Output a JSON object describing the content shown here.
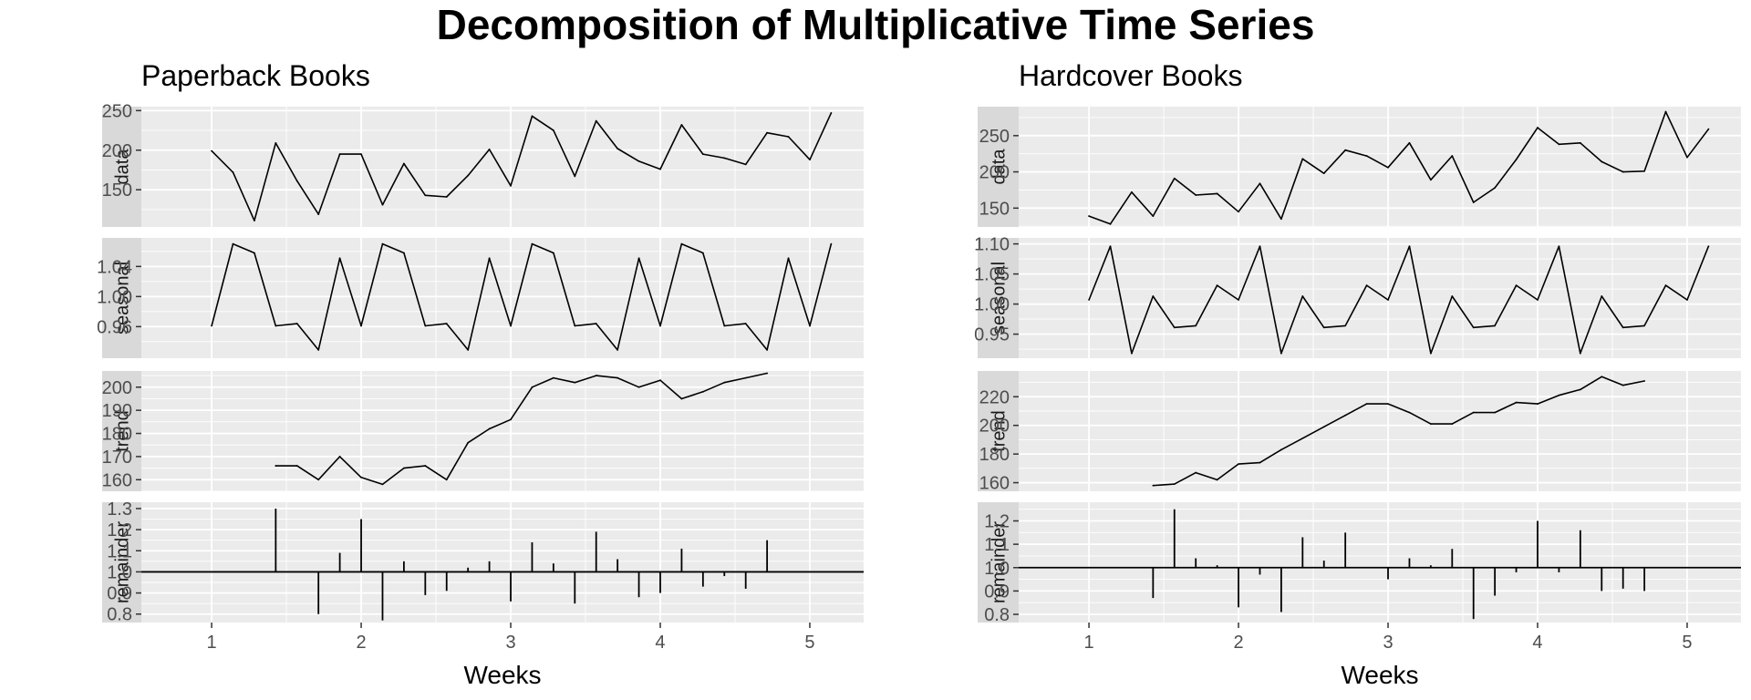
{
  "title": "Decomposition of Multiplicative Time Series",
  "colors": {
    "panel_background": "#ebebeb",
    "strip_background": "#d9d9d9",
    "grid": "#ffffff",
    "line": "#000000",
    "tick_text": "#4d4d4d"
  },
  "chart_data": [
    {
      "type": "line",
      "title": "Paperback Books",
      "xlabel": "Weeks",
      "xlim": [
        0.53,
        5.36
      ],
      "x_ticks": [
        1,
        2,
        3,
        4,
        5
      ],
      "x_tick_labels": [
        "1",
        "2",
        "3",
        "4",
        "5"
      ],
      "x": [
        1,
        1.1429,
        1.2857,
        1.4286,
        1.5714,
        1.7143,
        1.8571,
        2,
        2.1429,
        2.2857,
        2.4286,
        2.5714,
        2.7143,
        2.8571,
        3,
        3.1429,
        3.2857,
        3.4286,
        3.5714,
        3.7143,
        3.8571,
        4,
        4.1429,
        4.2857,
        4.4286,
        4.5714,
        4.7143,
        4.8571,
        5,
        5.1429
      ],
      "facets": [
        {
          "name": "data",
          "style": "line",
          "ylim": [
            103,
            255
          ],
          "y_ticks": [
            150,
            200,
            250
          ],
          "y_tick_labels": [
            "150",
            "200",
            "250"
          ],
          "values": [
            199,
            172,
            111,
            209,
            161,
            119,
            195,
            195,
            131,
            183,
            143,
            141,
            168,
            201,
            155,
            243,
            225,
            167,
            237,
            202,
            186,
            176,
            232,
            195,
            190,
            182,
            222,
            217,
            188,
            247
          ]
        },
        {
          "name": "seasonal",
          "style": "line",
          "ylim": [
            0.918,
            1.078
          ],
          "y_ticks": [
            0.96,
            1.0,
            1.04
          ],
          "y_tick_labels": [
            "0.96",
            "1.00",
            "1.04"
          ],
          "values": [
            0.961,
            1.07,
            1.058,
            0.961,
            0.964,
            0.929,
            1.051,
            0.961,
            1.07,
            1.058,
            0.961,
            0.964,
            0.929,
            1.051,
            0.961,
            1.07,
            1.058,
            0.961,
            0.964,
            0.929,
            1.051,
            0.961,
            1.07,
            1.058,
            0.961,
            0.964,
            0.929,
            1.051,
            0.961,
            1.07
          ]
        },
        {
          "name": "trend",
          "style": "line",
          "ylim": [
            155,
            207
          ],
          "y_ticks": [
            160,
            170,
            180,
            190,
            200
          ],
          "y_tick_labels": [
            "160",
            "170",
            "180",
            "190",
            "200"
          ],
          "values": [
            null,
            null,
            null,
            166,
            166,
            160,
            170,
            161,
            158,
            165,
            166,
            160,
            176,
            182,
            186,
            200,
            204,
            202,
            205,
            204,
            200,
            203,
            195,
            198,
            202,
            204,
            206,
            null,
            null,
            null
          ]
        },
        {
          "name": "remainder",
          "style": "bar",
          "baseline": 1.0,
          "ylim": [
            0.76,
            1.33
          ],
          "y_ticks": [
            0.8,
            0.9,
            1.0,
            1.1,
            1.2,
            1.3
          ],
          "y_tick_labels": [
            "0.8",
            "0.9",
            "1.0",
            "1.1",
            "1.2",
            "1.3"
          ],
          "values": [
            null,
            null,
            null,
            1.3,
            null,
            0.8,
            1.09,
            1.25,
            0.77,
            1.05,
            0.89,
            0.91,
            1.02,
            1.05,
            0.86,
            1.14,
            1.04,
            0.85,
            1.19,
            1.06,
            0.88,
            0.9,
            1.11,
            0.93,
            0.98,
            0.92,
            1.15,
            null,
            null,
            null
          ]
        }
      ]
    },
    {
      "type": "line",
      "title": "Hardcover Books",
      "xlabel": "Weeks",
      "xlim": [
        0.53,
        5.36
      ],
      "x_ticks": [
        1,
        2,
        3,
        4,
        5
      ],
      "x_tick_labels": [
        "1",
        "2",
        "3",
        "4",
        "5"
      ],
      "x": [
        1,
        1.1429,
        1.2857,
        1.4286,
        1.5714,
        1.7143,
        1.8571,
        2,
        2.1429,
        2.2857,
        2.4286,
        2.5714,
        2.7143,
        2.8571,
        3,
        3.1429,
        3.2857,
        3.4286,
        3.5714,
        3.7143,
        3.8571,
        4,
        4.1429,
        4.2857,
        4.4286,
        4.5714,
        4.7143,
        4.8571,
        5,
        5.1429
      ],
      "facets": [
        {
          "name": "data",
          "style": "line",
          "ylim": [
            124,
            290
          ],
          "y_ticks": [
            150,
            200,
            250
          ],
          "y_tick_labels": [
            "150",
            "200",
            "250"
          ],
          "values": [
            139,
            128,
            172,
            139,
            191,
            168,
            170,
            145,
            184,
            135,
            218,
            198,
            230,
            222,
            206,
            240,
            189,
            222,
            158,
            178,
            217,
            261,
            238,
            240,
            214,
            200,
            201,
            283,
            220,
            259
          ]
        },
        {
          "name": "seasonal",
          "style": "line",
          "ylim": [
            0.91,
            1.11
          ],
          "y_ticks": [
            0.95,
            1.0,
            1.05,
            1.1
          ],
          "y_tick_labels": [
            "0.95",
            "1.00",
            "1.05",
            "1.10"
          ],
          "values": [
            1.007,
            1.096,
            0.918,
            1.013,
            0.961,
            0.964,
            1.031,
            1.007,
            1.096,
            0.918,
            1.013,
            0.961,
            0.964,
            1.031,
            1.007,
            1.096,
            0.918,
            1.013,
            0.961,
            0.964,
            1.031,
            1.007,
            1.096,
            0.918,
            1.013,
            0.961,
            0.964,
            1.031,
            1.007,
            1.096
          ]
        },
        {
          "name": "trend",
          "style": "line",
          "ylim": [
            154,
            238
          ],
          "y_ticks": [
            160,
            180,
            200,
            220
          ],
          "y_tick_labels": [
            "160",
            "180",
            "200",
            "220"
          ],
          "values": [
            null,
            null,
            null,
            158,
            159,
            167,
            162,
            173,
            174,
            183,
            191,
            199,
            207,
            215,
            215,
            209,
            201,
            201,
            209,
            209,
            216,
            215,
            221,
            225,
            234,
            228,
            231,
            null,
            null,
            null
          ]
        },
        {
          "name": "remainder",
          "style": "bar",
          "baseline": 1.0,
          "ylim": [
            0.765,
            1.28
          ],
          "y_ticks": [
            0.8,
            0.9,
            1.0,
            1.1,
            1.2
          ],
          "y_tick_labels": [
            "0.8",
            "0.9",
            "1.0",
            "1.1",
            "1.2"
          ],
          "values": [
            null,
            null,
            null,
            0.87,
            1.25,
            1.04,
            1.01,
            0.83,
            0.97,
            0.81,
            1.13,
            1.03,
            1.15,
            null,
            0.95,
            1.04,
            1.01,
            1.08,
            0.78,
            0.88,
            0.98,
            1.2,
            0.98,
            1.16,
            0.9,
            0.91,
            0.9,
            null,
            null,
            null
          ]
        }
      ]
    }
  ]
}
